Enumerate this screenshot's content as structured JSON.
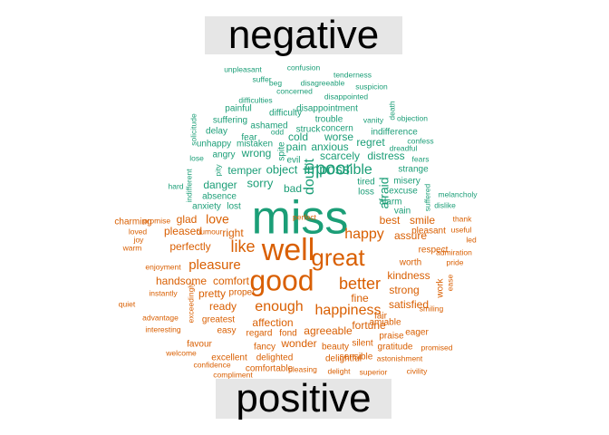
{
  "chart_data": {
    "type": "comparison-wordcloud",
    "groups": [
      {
        "name": "negative",
        "color": "#1b9e77"
      },
      {
        "name": "positive",
        "color": "#d95f02"
      }
    ],
    "words": [
      {
        "text": "miss",
        "group": "negative",
        "weight": 10
      },
      {
        "text": "poor",
        "group": "negative",
        "weight": 4
      },
      {
        "text": "doubt",
        "group": "negative",
        "weight": 3
      },
      {
        "text": "impossible",
        "group": "negative",
        "weight": 3
      },
      {
        "text": "afraid",
        "group": "negative",
        "weight": 2.5
      },
      {
        "text": "object",
        "group": "negative",
        "weight": 2.2
      },
      {
        "text": "sorry",
        "group": "negative",
        "weight": 2.2
      },
      {
        "text": "anxious",
        "group": "negative",
        "weight": 2
      },
      {
        "text": "worse",
        "group": "negative",
        "weight": 2
      },
      {
        "text": "regret",
        "group": "negative",
        "weight": 2
      },
      {
        "text": "scarcely",
        "group": "negative",
        "weight": 2
      },
      {
        "text": "distress",
        "group": "negative",
        "weight": 2
      },
      {
        "text": "wrong",
        "group": "negative",
        "weight": 2
      },
      {
        "text": "temper",
        "group": "negative",
        "weight": 2
      },
      {
        "text": "danger",
        "group": "negative",
        "weight": 2
      },
      {
        "text": "bad",
        "group": "negative",
        "weight": 2
      },
      {
        "text": "cold",
        "group": "negative",
        "weight": 2
      },
      {
        "text": "pain",
        "group": "negative",
        "weight": 2
      },
      {
        "text": "evil",
        "group": "negative",
        "weight": 1.5
      },
      {
        "text": "spite",
        "group": "negative",
        "weight": 1.5
      },
      {
        "text": "lost",
        "group": "negative",
        "weight": 1.5
      },
      {
        "text": "absence",
        "group": "negative",
        "weight": 1.5
      },
      {
        "text": "anxiety",
        "group": "negative",
        "weight": 1.5
      },
      {
        "text": "excuse",
        "group": "negative",
        "weight": 1.5
      },
      {
        "text": "strange",
        "group": "negative",
        "weight": 1.5
      },
      {
        "text": "trouble",
        "group": "negative",
        "weight": 1.5
      },
      {
        "text": "struck",
        "group": "negative",
        "weight": 1.5
      },
      {
        "text": "concern",
        "group": "negative",
        "weight": 1.5
      },
      {
        "text": "ashamed",
        "group": "negative",
        "weight": 1.5
      },
      {
        "text": "mistaken",
        "group": "negative",
        "weight": 1.5
      },
      {
        "text": "angry",
        "group": "negative",
        "weight": 1.5
      },
      {
        "text": "fear",
        "group": "negative",
        "weight": 1.5
      },
      {
        "text": "disappointment",
        "group": "negative",
        "weight": 1.5
      },
      {
        "text": "difficulty",
        "group": "negative",
        "weight": 1.5
      },
      {
        "text": "indifference",
        "group": "negative",
        "weight": 1.5
      },
      {
        "text": "misery",
        "group": "negative",
        "weight": 1.5
      },
      {
        "text": "alarm",
        "group": "negative",
        "weight": 1.5
      },
      {
        "text": "loss",
        "group": "negative",
        "weight": 1.5
      },
      {
        "text": "tired",
        "group": "negative",
        "weight": 1.5
      },
      {
        "text": "vain",
        "group": "negative",
        "weight": 1.5
      },
      {
        "text": "unhappy",
        "group": "negative",
        "weight": 1.5
      },
      {
        "text": "suffering",
        "group": "negative",
        "weight": 1.5
      },
      {
        "text": "painful",
        "group": "negative",
        "weight": 1.5
      },
      {
        "text": "delay",
        "group": "negative",
        "weight": 1.5
      },
      {
        "text": "lose",
        "group": "negative",
        "weight": 1
      },
      {
        "text": "hard",
        "group": "negative",
        "weight": 1
      },
      {
        "text": "pity",
        "group": "negative",
        "weight": 1
      },
      {
        "text": "odd",
        "group": "negative",
        "weight": 1
      },
      {
        "text": "suffer",
        "group": "negative",
        "weight": 1
      },
      {
        "text": "difficulties",
        "group": "negative",
        "weight": 1
      },
      {
        "text": "concerned",
        "group": "negative",
        "weight": 1
      },
      {
        "text": "beg",
        "group": "negative",
        "weight": 1
      },
      {
        "text": "disagreeable",
        "group": "negative",
        "weight": 1
      },
      {
        "text": "unpleasant",
        "group": "negative",
        "weight": 1
      },
      {
        "text": "confusion",
        "group": "negative",
        "weight": 1
      },
      {
        "text": "tenderness",
        "group": "negative",
        "weight": 1
      },
      {
        "text": "suspicion",
        "group": "negative",
        "weight": 1
      },
      {
        "text": "disappointed",
        "group": "negative",
        "weight": 1
      },
      {
        "text": "vanity",
        "group": "negative",
        "weight": 1
      },
      {
        "text": "death",
        "group": "negative",
        "weight": 1
      },
      {
        "text": "objection",
        "group": "negative",
        "weight": 1
      },
      {
        "text": "confess",
        "group": "negative",
        "weight": 1
      },
      {
        "text": "dreadful",
        "group": "negative",
        "weight": 1
      },
      {
        "text": "fears",
        "group": "negative",
        "weight": 1
      },
      {
        "text": "melancholy",
        "group": "negative",
        "weight": 1
      },
      {
        "text": "dislike",
        "group": "negative",
        "weight": 1
      },
      {
        "text": "suffered",
        "group": "negative",
        "weight": 1
      },
      {
        "text": "solicitude",
        "group": "negative",
        "weight": 1
      },
      {
        "text": "indifferent",
        "group": "negative",
        "weight": 1
      },
      {
        "text": "well",
        "group": "positive",
        "weight": 7
      },
      {
        "text": "good",
        "group": "positive",
        "weight": 6
      },
      {
        "text": "great",
        "group": "positive",
        "weight": 5
      },
      {
        "text": "like",
        "group": "positive",
        "weight": 3.5
      },
      {
        "text": "better",
        "group": "positive",
        "weight": 3.5
      },
      {
        "text": "enough",
        "group": "positive",
        "weight": 3
      },
      {
        "text": "happy",
        "group": "positive",
        "weight": 3
      },
      {
        "text": "happiness",
        "group": "positive",
        "weight": 3
      },
      {
        "text": "pleasure",
        "group": "positive",
        "weight": 2.8
      },
      {
        "text": "love",
        "group": "positive",
        "weight": 2.5
      },
      {
        "text": "best",
        "group": "positive",
        "weight": 2
      },
      {
        "text": "smile",
        "group": "positive",
        "weight": 2
      },
      {
        "text": "assure",
        "group": "positive",
        "weight": 2
      },
      {
        "text": "kindness",
        "group": "positive",
        "weight": 2
      },
      {
        "text": "strong",
        "group": "positive",
        "weight": 2
      },
      {
        "text": "fine",
        "group": "positive",
        "weight": 2
      },
      {
        "text": "satisfied",
        "group": "positive",
        "weight": 2
      },
      {
        "text": "agreeable",
        "group": "positive",
        "weight": 2
      },
      {
        "text": "affection",
        "group": "positive",
        "weight": 2
      },
      {
        "text": "fortune",
        "group": "positive",
        "weight": 2
      },
      {
        "text": "comfort",
        "group": "positive",
        "weight": 2
      },
      {
        "text": "pretty",
        "group": "positive",
        "weight": 2
      },
      {
        "text": "ready",
        "group": "positive",
        "weight": 2
      },
      {
        "text": "perfectly",
        "group": "positive",
        "weight": 2
      },
      {
        "text": "glad",
        "group": "positive",
        "weight": 2
      },
      {
        "text": "right",
        "group": "positive",
        "weight": 2
      },
      {
        "text": "pleased",
        "group": "positive",
        "weight": 2
      },
      {
        "text": "handsome",
        "group": "positive",
        "weight": 2
      },
      {
        "text": "wonder",
        "group": "positive",
        "weight": 2
      },
      {
        "text": "greatest",
        "group": "positive",
        "weight": 1.5
      },
      {
        "text": "regard",
        "group": "positive",
        "weight": 1.5
      },
      {
        "text": "fond",
        "group": "positive",
        "weight": 1.5
      },
      {
        "text": "fancy",
        "group": "positive",
        "weight": 1.5
      },
      {
        "text": "beauty",
        "group": "positive",
        "weight": 1.5
      },
      {
        "text": "silent",
        "group": "positive",
        "weight": 1.5
      },
      {
        "text": "praise",
        "group": "positive",
        "weight": 1.5
      },
      {
        "text": "fair",
        "group": "positive",
        "weight": 1.5
      },
      {
        "text": "amiable",
        "group": "positive",
        "weight": 1.5
      },
      {
        "text": "eager",
        "group": "positive",
        "weight": 1.5
      },
      {
        "text": "gratitude",
        "group": "positive",
        "weight": 1.5
      },
      {
        "text": "sensible",
        "group": "positive",
        "weight": 1.5
      },
      {
        "text": "delightful",
        "group": "positive",
        "weight": 1.5
      },
      {
        "text": "delighted",
        "group": "positive",
        "weight": 1.5
      },
      {
        "text": "excellent",
        "group": "positive",
        "weight": 1.5
      },
      {
        "text": "easy",
        "group": "positive",
        "weight": 1.5
      },
      {
        "text": "proper",
        "group": "positive",
        "weight": 1.5
      },
      {
        "text": "worth",
        "group": "positive",
        "weight": 1.5
      },
      {
        "text": "respect",
        "group": "positive",
        "weight": 1.5
      },
      {
        "text": "pleasant",
        "group": "positive",
        "weight": 1.5
      },
      {
        "text": "work",
        "group": "positive",
        "weight": 1.5
      },
      {
        "text": "comfortable",
        "group": "positive",
        "weight": 1.5
      },
      {
        "text": "favour",
        "group": "positive",
        "weight": 1.5
      },
      {
        "text": "charming",
        "group": "positive",
        "weight": 1.5
      },
      {
        "text": "promise",
        "group": "positive",
        "weight": 1
      },
      {
        "text": "loved",
        "group": "positive",
        "weight": 1
      },
      {
        "text": "humour",
        "group": "positive",
        "weight": 1
      },
      {
        "text": "joy",
        "group": "positive",
        "weight": 1
      },
      {
        "text": "warm",
        "group": "positive",
        "weight": 1
      },
      {
        "text": "enjoyment",
        "group": "positive",
        "weight": 1
      },
      {
        "text": "instantly",
        "group": "positive",
        "weight": 1
      },
      {
        "text": "quiet",
        "group": "positive",
        "weight": 1
      },
      {
        "text": "exceedingly",
        "group": "positive",
        "weight": 1
      },
      {
        "text": "advantage",
        "group": "positive",
        "weight": 1
      },
      {
        "text": "interesting",
        "group": "positive",
        "weight": 1
      },
      {
        "text": "welcome",
        "group": "positive",
        "weight": 1
      },
      {
        "text": "confidence",
        "group": "positive",
        "weight": 1
      },
      {
        "text": "compliment",
        "group": "positive",
        "weight": 1
      },
      {
        "text": "pleasing",
        "group": "positive",
        "weight": 1
      },
      {
        "text": "delight",
        "group": "positive",
        "weight": 1
      },
      {
        "text": "superior",
        "group": "positive",
        "weight": 1
      },
      {
        "text": "civility",
        "group": "positive",
        "weight": 1
      },
      {
        "text": "astonishment",
        "group": "positive",
        "weight": 1
      },
      {
        "text": "promised",
        "group": "positive",
        "weight": 1
      },
      {
        "text": "smiling",
        "group": "positive",
        "weight": 1
      },
      {
        "text": "ease",
        "group": "positive",
        "weight": 1
      },
      {
        "text": "admiration",
        "group": "positive",
        "weight": 1
      },
      {
        "text": "pride",
        "group": "positive",
        "weight": 1
      },
      {
        "text": "led",
        "group": "positive",
        "weight": 1
      },
      {
        "text": "useful",
        "group": "positive",
        "weight": 1
      },
      {
        "text": "thank",
        "group": "positive",
        "weight": 1
      },
      {
        "text": "perfect",
        "group": "positive",
        "weight": 1
      }
    ]
  }
}
